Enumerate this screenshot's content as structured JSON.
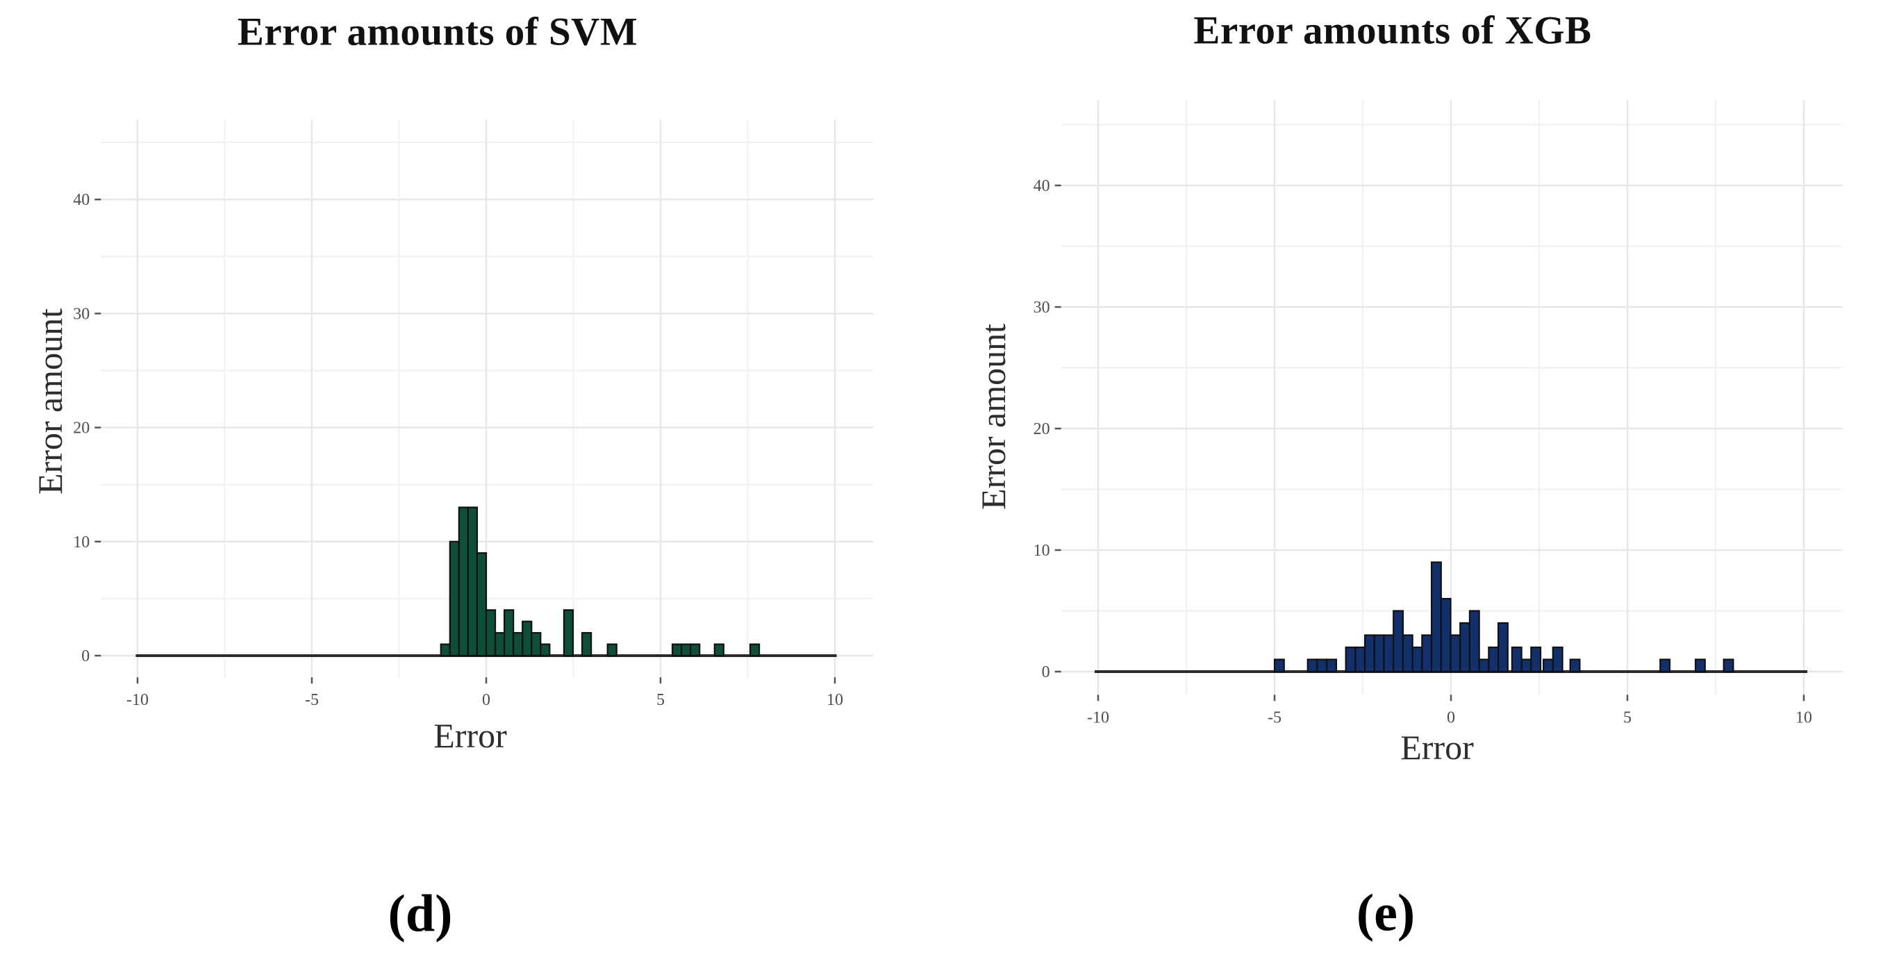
{
  "figure": {
    "background": "#ffffff"
  },
  "chart_data": [
    {
      "type": "bar",
      "variant": "histogram",
      "title": "Error amounts of SVM",
      "xlabel": "Error",
      "ylabel": "Error amount",
      "caption": "(d)",
      "bar_color": "#0e4f38",
      "bar_edge_color": "#101010",
      "grid": "on",
      "x_ticks": [
        -10,
        -5,
        0,
        5,
        10
      ],
      "y_ticks": [
        0,
        10,
        20,
        30,
        40
      ],
      "x_minor_ticks": [
        -7.5,
        -2.5,
        2.5,
        7.5
      ],
      "y_minor_ticks": [
        5,
        15,
        25,
        35,
        45
      ],
      "xlim": [
        -11.05,
        11.1
      ],
      "ylim": [
        -1.9,
        47
      ],
      "bin_width": 0.26,
      "baseline_span": [
        -10.05,
        10.05
      ],
      "bars": [
        {
          "x": -1.3,
          "count": 1
        },
        {
          "x": -1.04,
          "count": 10
        },
        {
          "x": -0.78,
          "count": 13
        },
        {
          "x": -0.52,
          "count": 13
        },
        {
          "x": -0.26,
          "count": 9
        },
        {
          "x": 0.0,
          "count": 4
        },
        {
          "x": 0.26,
          "count": 2
        },
        {
          "x": 0.52,
          "count": 4
        },
        {
          "x": 0.78,
          "count": 2
        },
        {
          "x": 1.04,
          "count": 3
        },
        {
          "x": 1.3,
          "count": 2
        },
        {
          "x": 1.56,
          "count": 1
        },
        {
          "x": 2.23,
          "count": 4
        },
        {
          "x": 2.75,
          "count": 2
        },
        {
          "x": 3.48,
          "count": 1
        },
        {
          "x": 5.34,
          "count": 1
        },
        {
          "x": 5.6,
          "count": 1
        },
        {
          "x": 5.86,
          "count": 1
        },
        {
          "x": 6.55,
          "count": 1
        },
        {
          "x": 7.57,
          "count": 1
        }
      ]
    },
    {
      "type": "bar",
      "variant": "histogram",
      "title": "Error amounts of XGB",
      "xlabel": "Error",
      "ylabel": "Error amount",
      "caption": "(e)",
      "bar_color": "#12306b",
      "bar_edge_color": "#101010",
      "grid": "on",
      "x_ticks": [
        -10,
        -5,
        0,
        5,
        10
      ],
      "y_ticks": [
        0,
        10,
        20,
        30,
        40
      ],
      "x_minor_ticks": [
        -7.5,
        -2.5,
        2.5,
        7.5
      ],
      "y_minor_ticks": [
        5,
        15,
        25,
        35,
        45
      ],
      "xlim": [
        -11.05,
        11.1
      ],
      "ylim": [
        -1.9,
        47
      ],
      "bin_width": 0.27,
      "baseline_span": [
        -10.1,
        10.1
      ],
      "bars": [
        {
          "x": -5.0,
          "count": 1
        },
        {
          "x": -4.06,
          "count": 1
        },
        {
          "x": -3.79,
          "count": 1
        },
        {
          "x": -3.52,
          "count": 1
        },
        {
          "x": -2.98,
          "count": 2
        },
        {
          "x": -2.71,
          "count": 2
        },
        {
          "x": -2.44,
          "count": 3
        },
        {
          "x": -2.17,
          "count": 3
        },
        {
          "x": -1.9,
          "count": 3
        },
        {
          "x": -1.63,
          "count": 5
        },
        {
          "x": -1.36,
          "count": 3
        },
        {
          "x": -1.09,
          "count": 2
        },
        {
          "x": -0.82,
          "count": 3
        },
        {
          "x": -0.55,
          "count": 9
        },
        {
          "x": -0.28,
          "count": 6
        },
        {
          "x": -0.01,
          "count": 3
        },
        {
          "x": 0.26,
          "count": 4
        },
        {
          "x": 0.53,
          "count": 5
        },
        {
          "x": 0.8,
          "count": 1
        },
        {
          "x": 1.07,
          "count": 2
        },
        {
          "x": 1.34,
          "count": 4
        },
        {
          "x": 1.73,
          "count": 2
        },
        {
          "x": 2.0,
          "count": 1
        },
        {
          "x": 2.27,
          "count": 2
        },
        {
          "x": 2.62,
          "count": 1
        },
        {
          "x": 2.89,
          "count": 2
        },
        {
          "x": 3.38,
          "count": 1
        },
        {
          "x": 5.93,
          "count": 1
        },
        {
          "x": 6.93,
          "count": 1
        },
        {
          "x": 7.73,
          "count": 1
        }
      ]
    }
  ]
}
